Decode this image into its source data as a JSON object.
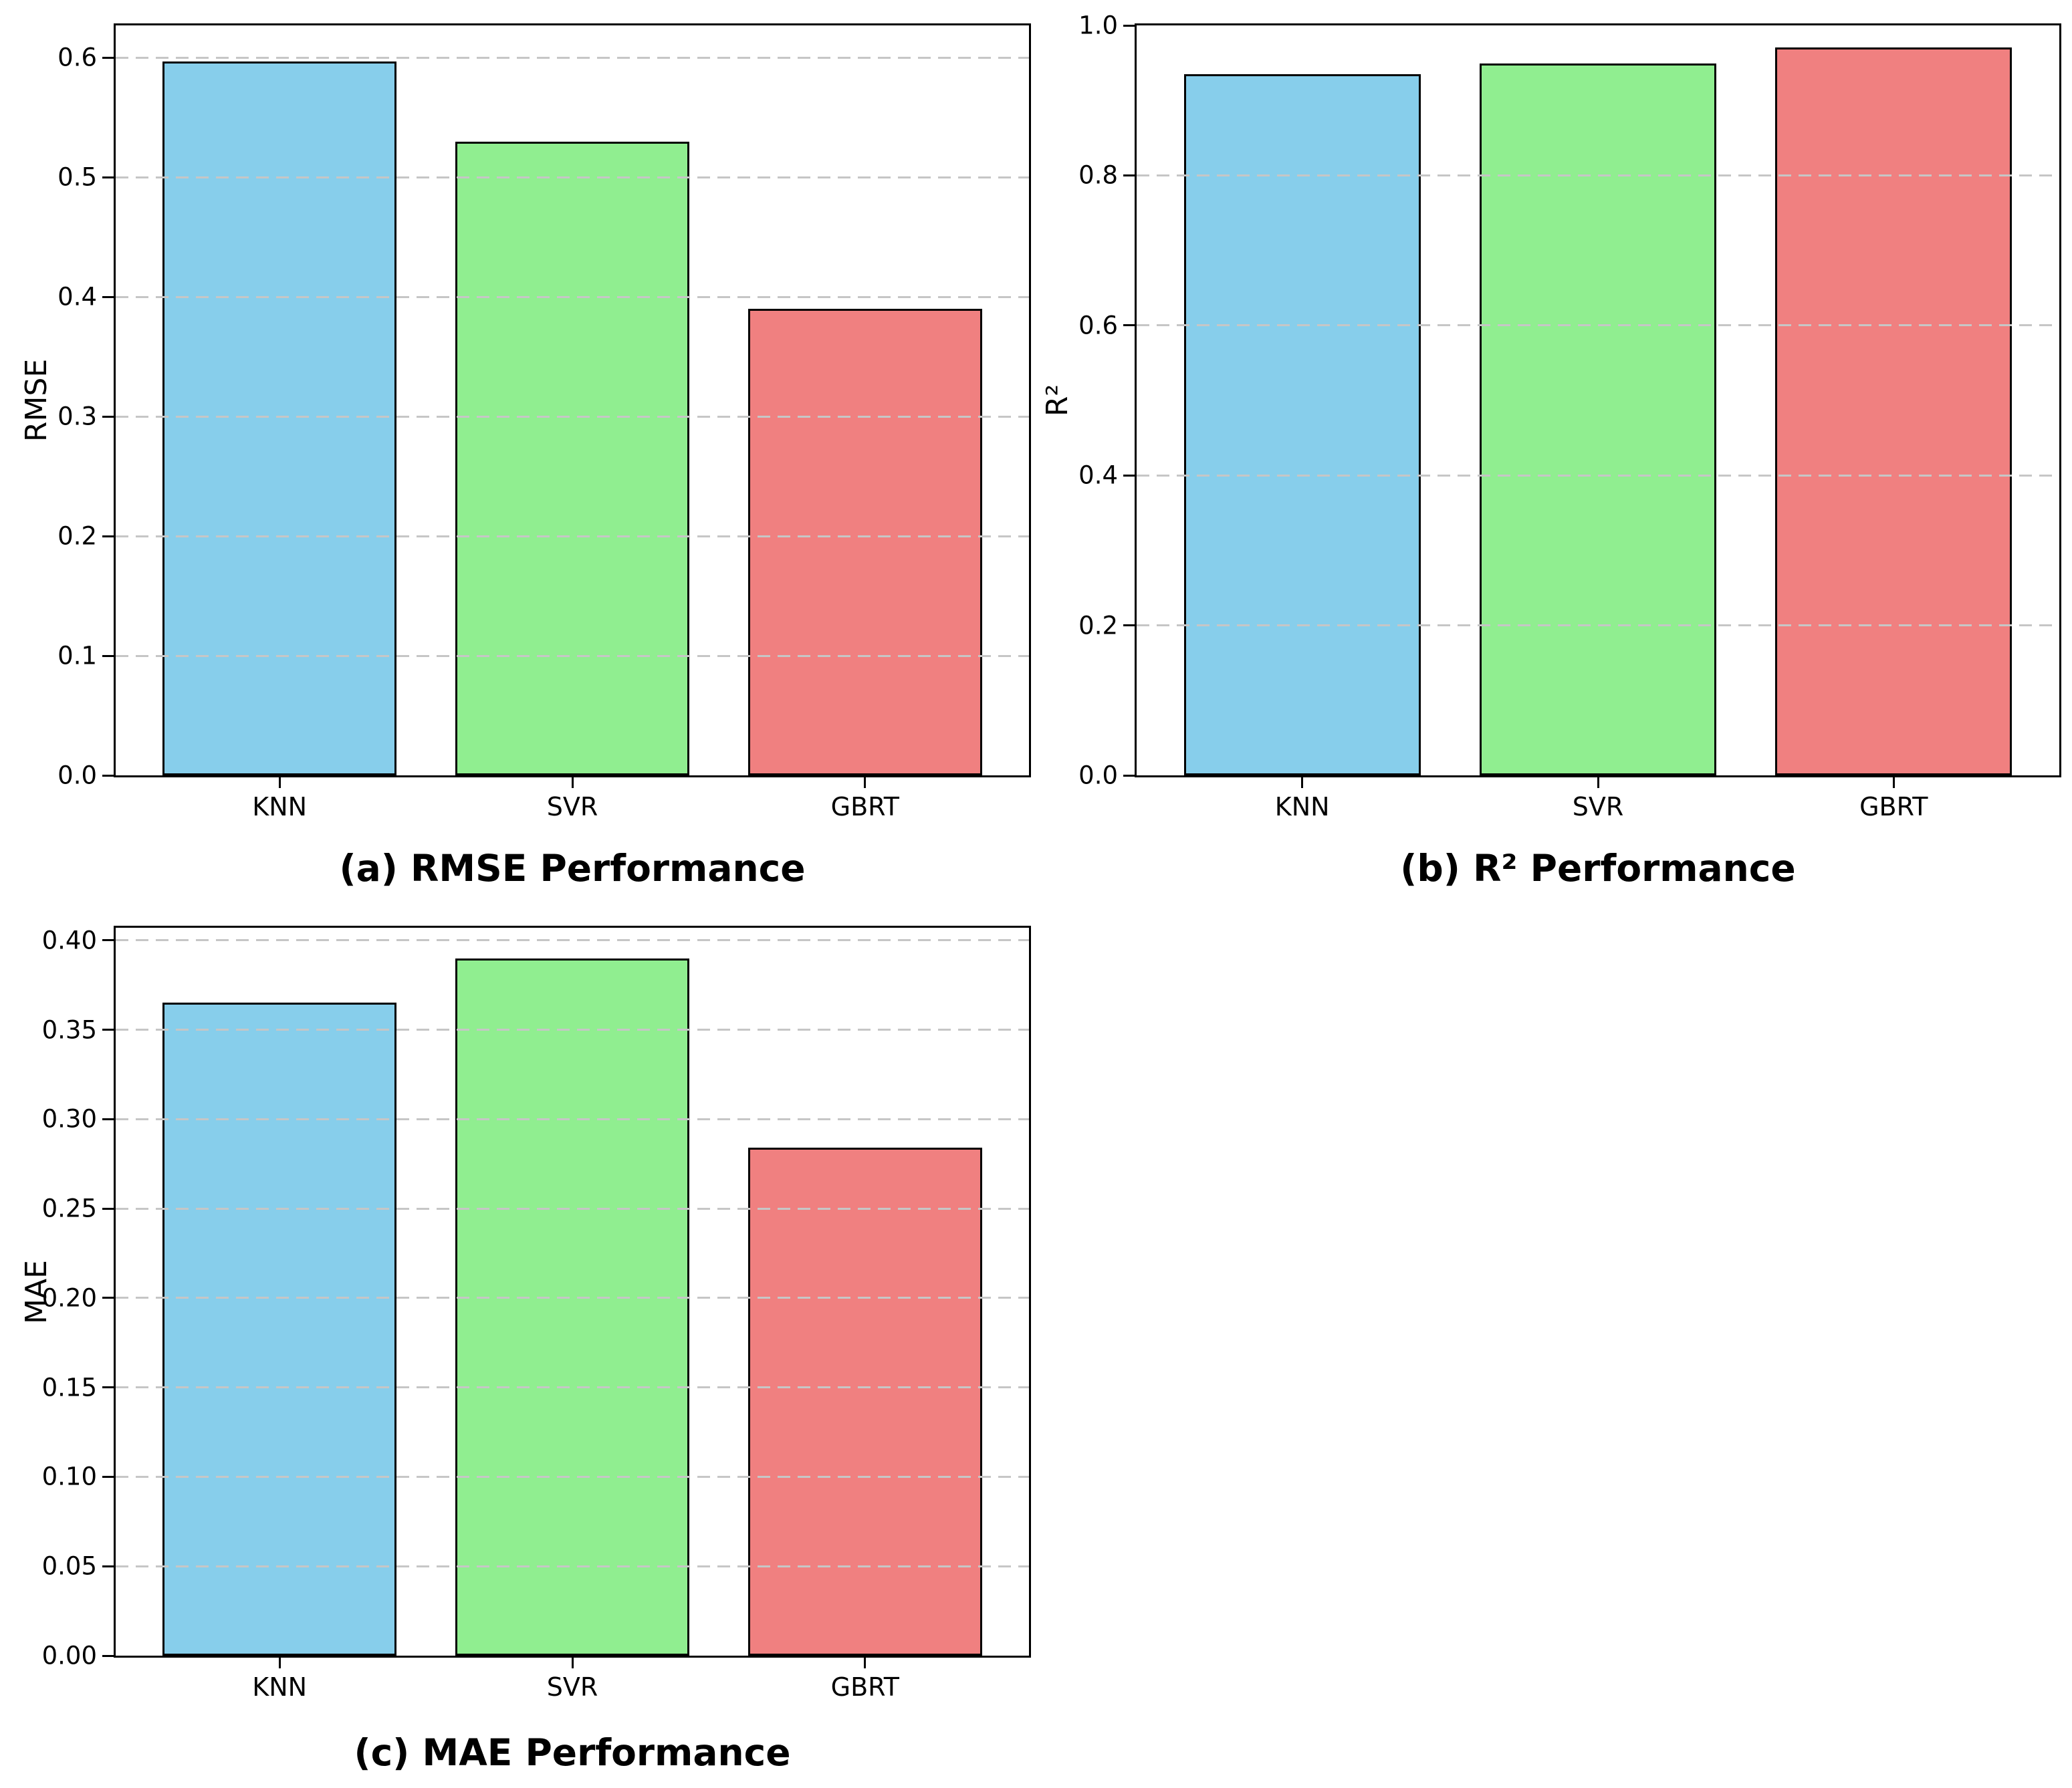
{
  "figure": {
    "background_color": "#ffffff",
    "grid_color": "#c6c6c6",
    "axis_color": "#000000",
    "bar_edge_color": "#000000",
    "bar_colors": [
      "#87CEEB",
      "#90EE90",
      "#F08080"
    ]
  },
  "chart_data": [
    {
      "id": "rmse",
      "type": "bar",
      "title": "(a) RMSE Performance",
      "ylabel": "RMSE",
      "xlabel": "",
      "categories": [
        "KNN",
        "SVR",
        "GBRT"
      ],
      "values": [
        0.597,
        0.53,
        0.39
      ],
      "bar_colors": [
        "#87CEEB",
        "#90EE90",
        "#F08080"
      ],
      "ylim": [
        0,
        0.627
      ],
      "yticks": [
        0.0,
        0.1,
        0.2,
        0.3,
        0.4,
        0.5,
        0.6
      ],
      "ytick_labels": [
        "0.0",
        "0.1",
        "0.2",
        "0.3",
        "0.4",
        "0.5",
        "0.6"
      ],
      "grid": "horizontal-dashed",
      "legend": "none"
    },
    {
      "id": "r2",
      "type": "bar",
      "title": "(b) R² Performance",
      "ylabel": "R²",
      "xlabel": "",
      "categories": [
        "KNN",
        "SVR",
        "GBRT"
      ],
      "values": [
        0.935,
        0.949,
        0.971
      ],
      "bar_colors": [
        "#87CEEB",
        "#90EE90",
        "#F08080"
      ],
      "ylim": [
        0,
        1.0
      ],
      "yticks": [
        0.0,
        0.2,
        0.4,
        0.6,
        0.8,
        1.0
      ],
      "ytick_labels": [
        "0.0",
        "0.2",
        "0.4",
        "0.6",
        "0.8",
        "1.0"
      ],
      "grid": "horizontal-dashed",
      "legend": "none"
    },
    {
      "id": "mae",
      "type": "bar",
      "title": "(c) MAE Performance",
      "ylabel": "MAE",
      "xlabel": "",
      "categories": [
        "KNN",
        "SVR",
        "GBRT"
      ],
      "values": [
        0.365,
        0.39,
        0.284
      ],
      "bar_colors": [
        "#87CEEB",
        "#90EE90",
        "#F08080"
      ],
      "ylim": [
        0,
        0.407
      ],
      "yticks": [
        0.0,
        0.05,
        0.1,
        0.15,
        0.2,
        0.25,
        0.3,
        0.35,
        0.4
      ],
      "ytick_labels": [
        "0.00",
        "0.05",
        "0.10",
        "0.15",
        "0.20",
        "0.25",
        "0.30",
        "0.35",
        "0.40"
      ],
      "grid": "horizontal-dashed",
      "legend": "none"
    }
  ]
}
